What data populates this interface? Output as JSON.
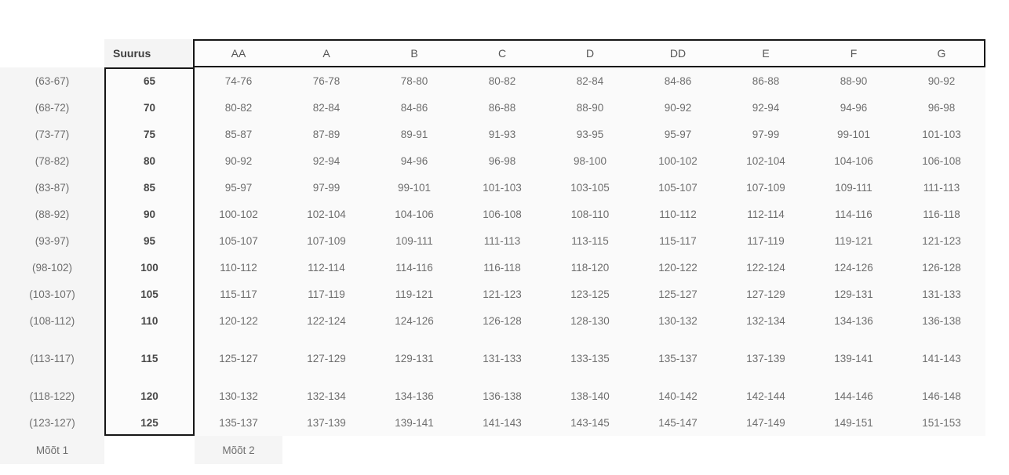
{
  "chart_data": {
    "type": "table",
    "corner_header": "",
    "size_header": "Suurus",
    "cup_headers": [
      "AA",
      "A",
      "B",
      "C",
      "D",
      "DD",
      "E",
      "F",
      "G"
    ],
    "rows": [
      {
        "underbust_range": "(63-67)",
        "size": "65",
        "cells": [
          "74-76",
          "76-78",
          "78-80",
          "80-82",
          "82-84",
          "84-86",
          "86-88",
          "88-90",
          "90-92"
        ]
      },
      {
        "underbust_range": "(68-72)",
        "size": "70",
        "cells": [
          "80-82",
          "82-84",
          "84-86",
          "86-88",
          "88-90",
          "90-92",
          "92-94",
          "94-96",
          "96-98"
        ]
      },
      {
        "underbust_range": "(73-77)",
        "size": "75",
        "cells": [
          "85-87",
          "87-89",
          "89-91",
          "91-93",
          "93-95",
          "95-97",
          "97-99",
          "99-101",
          "101-103"
        ]
      },
      {
        "underbust_range": "(78-82)",
        "size": "80",
        "cells": [
          "90-92",
          "92-94",
          "94-96",
          "96-98",
          "98-100",
          "100-102",
          "102-104",
          "104-106",
          "106-108"
        ]
      },
      {
        "underbust_range": "(83-87)",
        "size": "85",
        "cells": [
          "95-97",
          "97-99",
          "99-101",
          "101-103",
          "103-105",
          "105-107",
          "107-109",
          "109-111",
          "111-113"
        ]
      },
      {
        "underbust_range": "(88-92)",
        "size": "90",
        "cells": [
          "100-102",
          "102-104",
          "104-106",
          "106-108",
          "108-110",
          "110-112",
          "112-114",
          "114-116",
          "116-118"
        ]
      },
      {
        "underbust_range": "(93-97)",
        "size": "95",
        "cells": [
          "105-107",
          "107-109",
          "109-111",
          "111-113",
          "113-115",
          "115-117",
          "117-119",
          "119-121",
          "121-123"
        ]
      },
      {
        "underbust_range": "(98-102)",
        "size": "100",
        "cells": [
          "110-112",
          "112-114",
          "114-116",
          "116-118",
          "118-120",
          "120-122",
          "122-124",
          "124-126",
          "126-128"
        ]
      },
      {
        "underbust_range": "(103-107)",
        "size": "105",
        "cells": [
          "115-117",
          "117-119",
          "119-121",
          "121-123",
          "123-125",
          "125-127",
          "127-129",
          "129-131",
          "131-133"
        ]
      },
      {
        "underbust_range": "(108-112)",
        "size": "110",
        "cells": [
          "120-122",
          "122-124",
          "124-126",
          "126-128",
          "128-130",
          "130-132",
          "132-134",
          "134-136",
          "136-138"
        ]
      },
      {
        "underbust_range": "(113-117)",
        "size": "115",
        "cells": [
          "125-127",
          "127-129",
          "129-131",
          "131-133",
          "133-135",
          "135-137",
          "137-139",
          "139-141",
          "141-143"
        ]
      },
      {
        "underbust_range": "(118-122)",
        "size": "120",
        "cells": [
          "130-132",
          "132-134",
          "134-136",
          "136-138",
          "138-140",
          "140-142",
          "142-144",
          "144-146",
          "146-148"
        ]
      },
      {
        "underbust_range": "(123-127)",
        "size": "125",
        "cells": [
          "135-137",
          "137-139",
          "139-141",
          "141-143",
          "143-145",
          "145-147",
          "147-149",
          "149-151",
          "151-153"
        ]
      }
    ],
    "footer": {
      "measure1_label": "Mõõt 1",
      "measure2_label": "Mõõt 2"
    },
    "layout_hints": {
      "grid": "off",
      "tall_row_size": "115"
    }
  },
  "colors": {
    "outline_border": "#161616",
    "data_text": "#6e6e6e",
    "header_text": "#565656",
    "bold_text": "#474747",
    "range_column_bg": "#f5f5f5",
    "data_cell_bg": "#fafafa",
    "size_header_bg": "#f4f4f4",
    "page_bg": "#ffffff"
  }
}
